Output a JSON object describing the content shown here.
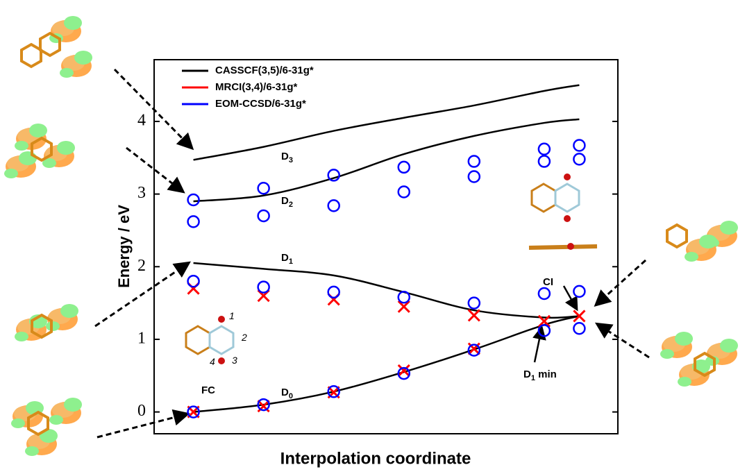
{
  "chart_data": {
    "type": "scatter",
    "x_label": "Interpolation coordinate",
    "y_label": "Energy / eV",
    "x": [
      1,
      2,
      3,
      4,
      5,
      6,
      6.5
    ],
    "xlim": [
      0.44,
      7.05
    ],
    "ylim": [
      -0.3,
      4.85
    ],
    "yticks": [
      0,
      1,
      2,
      3,
      4
    ],
    "series": [
      {
        "name": "CASSCF(3,5)/6-31g*",
        "color": "#000000",
        "marker": "curve",
        "values": [
          [
            0.0,
            0.1,
            0.28,
            0.55,
            0.86,
            1.2,
            1.32
          ],
          [
            2.05,
            1.97,
            1.88,
            1.65,
            1.4,
            1.3,
            1.32
          ],
          [
            2.9,
            2.98,
            3.22,
            3.55,
            3.8,
            3.98,
            4.03
          ],
          [
            3.47,
            3.65,
            3.87,
            4.05,
            4.22,
            4.42,
            4.5
          ]
        ]
      },
      {
        "name": "MRCI(3,4)/6-31g*",
        "color": "#ff0000",
        "marker": "cross",
        "values": [
          [
            0.0,
            0.08,
            0.27,
            0.57,
            0.87,
            1.25,
            1.32
          ],
          [
            1.7,
            1.6,
            1.55,
            1.45,
            1.33,
            null,
            null
          ]
        ]
      },
      {
        "name": "EOM-CCSD/6-31g*",
        "color": "#0000ff",
        "marker": "circle",
        "values": [
          [
            0.0,
            0.1,
            0.28,
            0.53,
            0.85,
            1.12,
            1.15
          ],
          [
            1.8,
            1.72,
            1.65,
            1.58,
            1.5,
            1.63,
            1.66
          ],
          [
            2.62,
            2.7,
            2.84,
            3.03,
            3.24,
            3.45,
            3.48
          ],
          [
            2.92,
            3.08,
            3.26,
            3.37,
            3.45,
            3.62,
            3.67
          ]
        ]
      }
    ],
    "annotations": [
      {
        "text": "D",
        "subscript": "3"
      },
      {
        "text": "D",
        "subscript": "2"
      },
      {
        "text": "D",
        "subscript": "1"
      },
      {
        "text": "D",
        "subscript": "0"
      },
      {
        "text": "FC"
      },
      {
        "text": "CI"
      },
      {
        "text": "D",
        "subscript": "1",
        "suffix": " min"
      },
      {
        "text": "1"
      },
      {
        "text": "2"
      },
      {
        "text": "3"
      },
      {
        "text": "4"
      }
    ]
  }
}
